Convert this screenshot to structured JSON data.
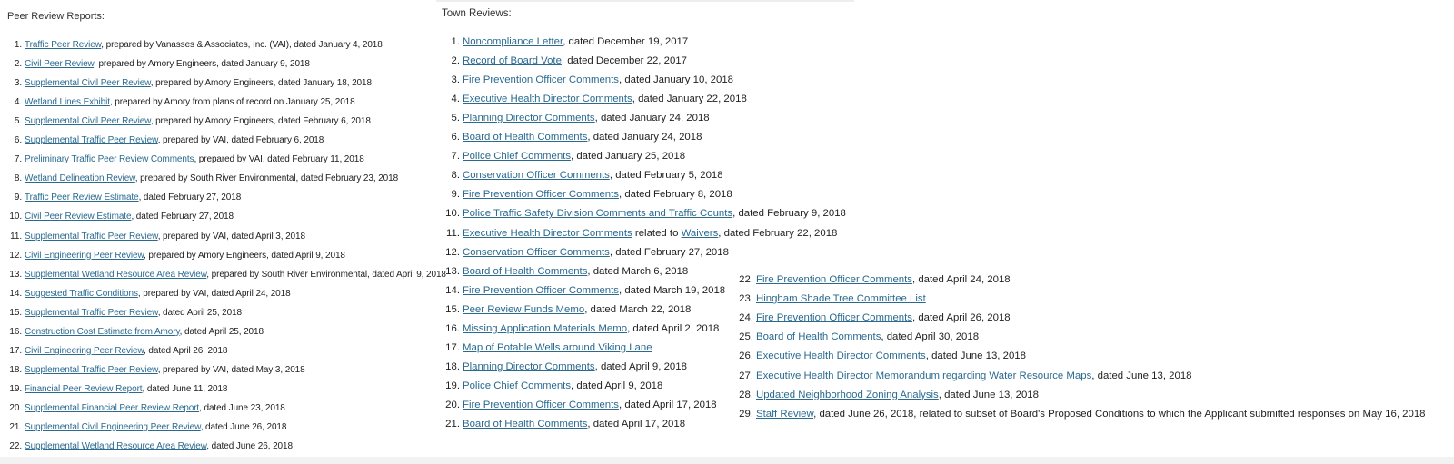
{
  "peer_review": {
    "heading": "Peer Review Reports:",
    "items": [
      {
        "link": "Traffic Peer Review",
        "rest": ", prepared by Vanasses & Associates, Inc. (VAI), dated January 4, 2018"
      },
      {
        "link": "Civil Peer Review",
        "rest": ", prepared by Amory Engineers, dated January 9, 2018"
      },
      {
        "link": "Supplemental Civil Peer Review",
        "rest": ", prepared by Amory Engineers, dated January 18, 2018"
      },
      {
        "link": "Wetland Lines Exhibit",
        "rest": ", prepared by Amory from plans of record on January 25, 2018"
      },
      {
        "link": "Supplemental Civil Peer Review",
        "rest": ", prepared by Amory Engineers, dated February 6, 2018"
      },
      {
        "link": "Supplemental Traffic Peer Review",
        "rest": ", prepared by VAI, dated February 6, 2018"
      },
      {
        "link": "Preliminary Traffic Peer Review Comments",
        "rest": ", prepared by VAI, dated February 11, 2018"
      },
      {
        "link": "Wetland Delineation Review",
        "rest": ", prepared by South River Environmental, dated February 23, 2018"
      },
      {
        "link": "Traffic Peer Review Estimate",
        "rest": ", dated February 27, 2018"
      },
      {
        "link": "Civil Peer Review Estimate",
        "rest": ", dated February 27, 2018"
      },
      {
        "link": "Supplemental Traffic Peer Review",
        "rest": ", prepared by VAI, dated April 3, 2018"
      },
      {
        "link": "Civil Engineering Peer Review",
        "rest": ", prepared by Amory Engineers, dated April 9, 2018"
      },
      {
        "link": "Supplemental Wetland Resource Area Review",
        "rest": ", prepared by South River Environmental, dated April 9, 2018"
      },
      {
        "link": "Suggested Traffic Conditions",
        "rest": ", prepared by VAI, dated April 24, 2018"
      },
      {
        "link": "Supplemental Traffic Peer Review",
        "rest": ", dated April 25, 2018"
      },
      {
        "link": "Construction Cost Estimate from Amory",
        "rest": ", dated April 25, 2018"
      },
      {
        "link": "Civil Engineering Peer Review",
        "rest": ", dated April 26, 2018"
      },
      {
        "link": "Supplemental Traffic Peer Review",
        "rest": ", prepared by VAI, dated May 3, 2018"
      },
      {
        "link": "Financial Peer Review Report",
        "rest": ", dated June 11, 2018"
      },
      {
        "link": "Supplemental Financial Peer Review Report",
        "rest": ", dated June 23, 2018"
      },
      {
        "link": "Supplemental Civil Engineering Peer Review",
        "rest": ", dated June 26, 2018"
      },
      {
        "link": "Supplemental Wetland Resource Area Review",
        "rest": ", dated June 26, 2018"
      }
    ]
  },
  "town_reviews": {
    "heading": "Town Reviews:",
    "items": [
      {
        "link": "Noncompliance Letter",
        "rest": ", dated December 19, 2017"
      },
      {
        "link": "Record of Board Vote",
        "rest": ", dated December 22, 2017"
      },
      {
        "link": "Fire Prevention Officer Comments",
        "rest": ", dated January 10, 2018"
      },
      {
        "link": "Executive Health Director Comments",
        "rest": ", dated January 22, 2018"
      },
      {
        "link": "Planning Director Comments",
        "rest": ", dated January 24, 2018"
      },
      {
        "link": "Board of Health Comments",
        "rest": ", dated January 24, 2018"
      },
      {
        "link": "Police Chief Comments",
        "rest": ", dated January 25, 2018"
      },
      {
        "link": "Conservation Officer Comments",
        "rest": ", dated February 5, 2018"
      },
      {
        "link": "Fire Prevention Officer Comments",
        "rest": ", dated February 8, 2018"
      },
      {
        "link": "Police Traffic Safety Division Comments and Traffic Counts",
        "rest": ", dated February 9, 2018"
      },
      {
        "link": "Executive Health Director Comments",
        "mid": " related to ",
        "link2": "Waivers",
        "rest": ", dated February 22, 2018"
      },
      {
        "link": "Conservation Officer Comments",
        "rest": ", dated February 27, 2018"
      },
      {
        "link": "Board of Health Comments",
        "rest": ", dated March 6, 2018"
      },
      {
        "link": "Fire Prevention Officer Comments",
        "rest": ", dated March 19, 2018"
      },
      {
        "link": "Peer Review Funds Memo",
        "rest": ", dated March 22, 2018"
      },
      {
        "link": "Missing Application Materials Memo",
        "rest": ", dated April 2, 2018"
      },
      {
        "link": "Map of Potable Wells around Viking Lane",
        "rest": ""
      },
      {
        "link": "Planning Director Comments",
        "rest": ", dated April 9, 2018"
      },
      {
        "link": "Police Chief Comments",
        "rest": ", dated April 9, 2018"
      },
      {
        "link": "Fire Prevention Officer Comments",
        "rest": ", dated April 17, 2018"
      },
      {
        "link": "Board of Health Comments",
        "rest": ", dated April 17, 2018"
      },
      {
        "link": "Fire Prevention Officer Comments",
        "rest": ", dated April 24, 2018"
      },
      {
        "link": "Hingham Shade Tree Committee List",
        "rest": ""
      },
      {
        "link": "Fire Prevention Officer Comments",
        "rest": ", dated April 26, 2018"
      },
      {
        "link": "Board of Health Comments",
        "rest": ", dated April 30, 2018"
      },
      {
        "link": "Executive Health Director Comments",
        "rest": ", dated June 13, 2018"
      },
      {
        "link": "Executive Health Director Memorandum regarding Water Resource Maps",
        "rest": ", dated June 13, 2018"
      },
      {
        "link": "Updated Neighborhood Zoning Analysis",
        "rest": ", dated June 13, 2018"
      },
      {
        "link": "Staff Review",
        "rest": ", dated June 26, 2018, related to subset of Board's Proposed Conditions to which the Applicant submitted responses on May 16, 2018"
      }
    ]
  },
  "colors": {
    "link": "#2a6a8f",
    "text": "#222222"
  }
}
